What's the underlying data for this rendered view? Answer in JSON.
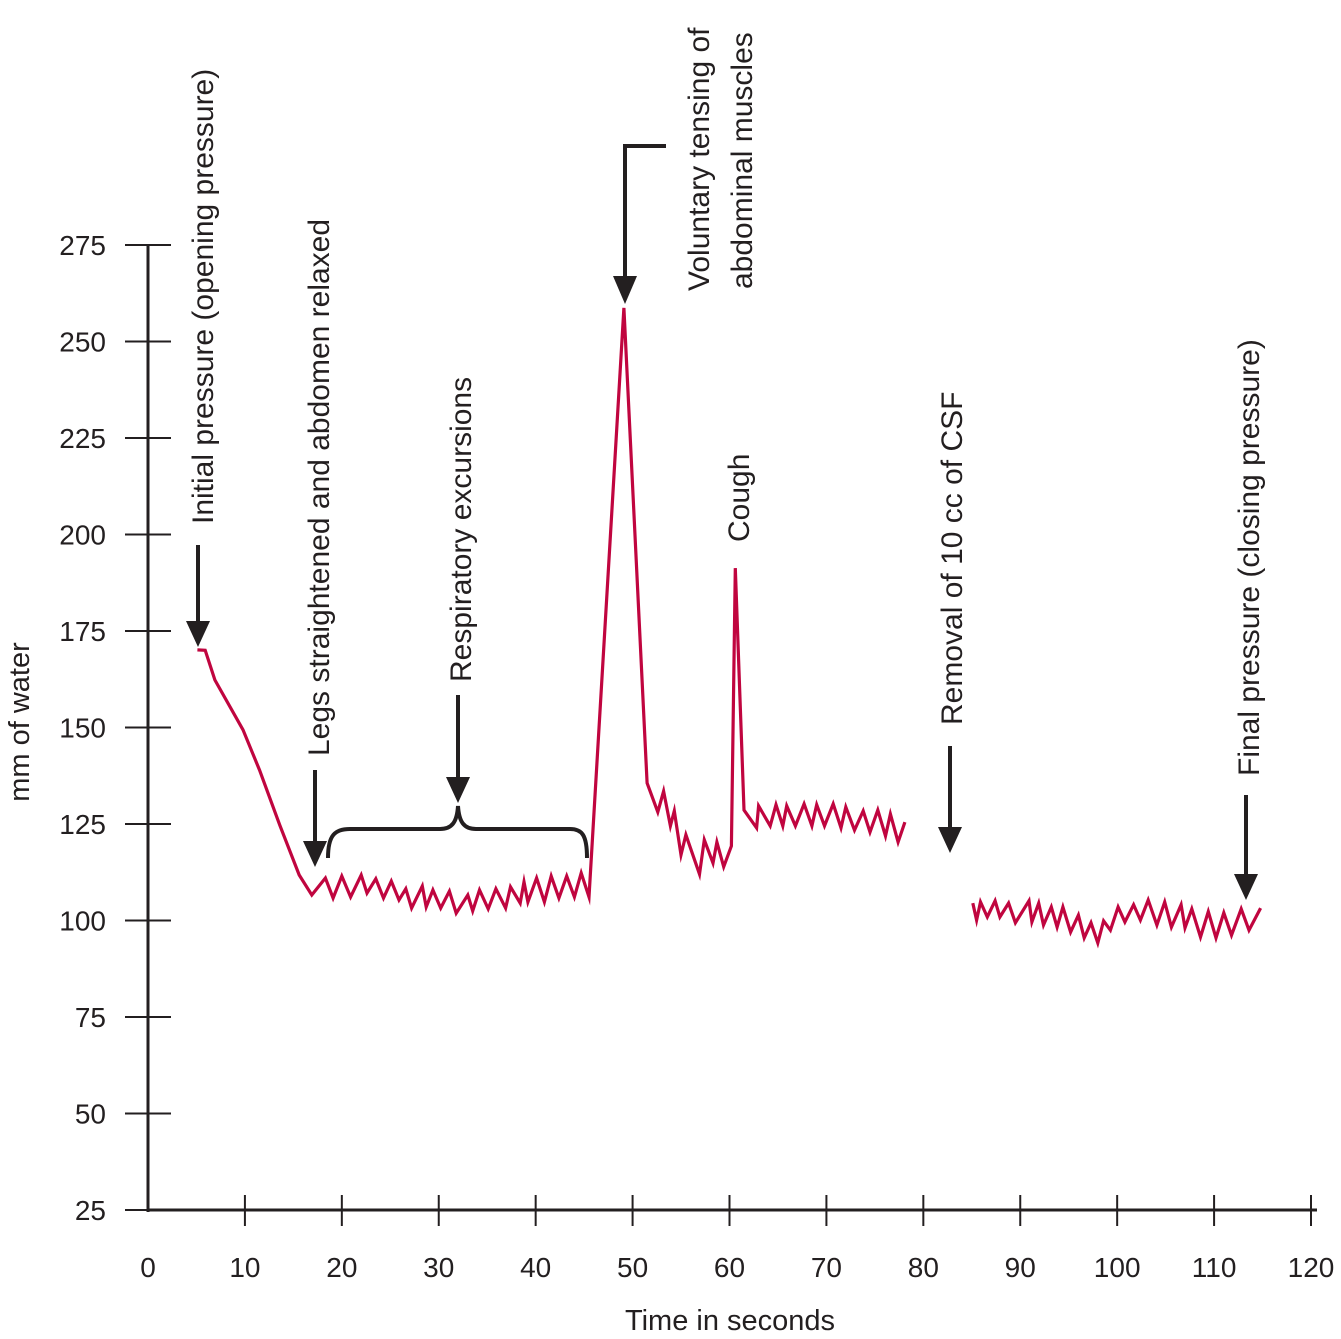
{
  "chart_data": {
    "type": "line",
    "title": "",
    "xlabel": "Time in seconds",
    "ylabel": "mm of water",
    "xlim": [
      0,
      120
    ],
    "ylim": [
      25,
      275
    ],
    "x_ticks": [
      0,
      10,
      20,
      30,
      40,
      50,
      60,
      70,
      80,
      90,
      100,
      110,
      120
    ],
    "y_ticks": [
      25,
      50,
      75,
      100,
      125,
      150,
      175,
      200,
      225,
      250,
      275
    ],
    "grid": false,
    "line_color": "#c0053f",
    "annotation_color": "#231f20",
    "segments": [
      [
        [
          5.1,
          170.1
        ],
        [
          5.9,
          170
        ],
        [
          6.9,
          162.3
        ],
        [
          9.8,
          149.4
        ],
        [
          11.5,
          139
        ],
        [
          13.6,
          124.7
        ],
        [
          15.6,
          111.8
        ],
        [
          16.9,
          106.6
        ],
        [
          18.3,
          111
        ],
        [
          19.1,
          105.8
        ],
        [
          20.0,
          111.5
        ],
        [
          20.9,
          106.1
        ],
        [
          22.0,
          111.8
        ],
        [
          22.6,
          107.1
        ],
        [
          23.5,
          110.8
        ],
        [
          24.3,
          105.8
        ],
        [
          25.1,
          110.2
        ],
        [
          25.9,
          105.3
        ],
        [
          26.6,
          108.2
        ],
        [
          27.2,
          103.2
        ],
        [
          28.3,
          108.9
        ],
        [
          28.7,
          103.5
        ],
        [
          29.4,
          107.9
        ],
        [
          30.2,
          103.2
        ],
        [
          31.1,
          107.6
        ],
        [
          31.8,
          101.9
        ],
        [
          33.0,
          106.6
        ],
        [
          33.5,
          102.5
        ],
        [
          34.2,
          107.9
        ],
        [
          35.1,
          103
        ],
        [
          35.9,
          108.2
        ],
        [
          36.9,
          103.2
        ],
        [
          37.4,
          108.7
        ],
        [
          38.4,
          104.5
        ],
        [
          38.8,
          110
        ],
        [
          39.2,
          104.8
        ],
        [
          40.1,
          111
        ],
        [
          40.9,
          104.8
        ],
        [
          41.6,
          111.5
        ],
        [
          42.4,
          105.8
        ],
        [
          43.2,
          111.5
        ],
        [
          44.0,
          106.1
        ],
        [
          44.7,
          112.3
        ],
        [
          45.5,
          106.1
        ],
        [
          49.1,
          258.7
        ],
        [
          51.5,
          135.6
        ],
        [
          52.6,
          128.1
        ],
        [
          53.2,
          133.5
        ],
        [
          53.9,
          124.5
        ],
        [
          54.3,
          128.4
        ],
        [
          55.0,
          117
        ],
        [
          55.5,
          122.2
        ],
        [
          56.9,
          112
        ],
        [
          57.4,
          120.9
        ],
        [
          58.3,
          114.9
        ],
        [
          58.7,
          120.3
        ],
        [
          59.4,
          113.9
        ],
        [
          60.2,
          119.3
        ],
        [
          60.6,
          191.3
        ],
        [
          61.5,
          128.6
        ],
        [
          62.8,
          124
        ],
        [
          63.0,
          129.7
        ],
        [
          64.2,
          124.5
        ],
        [
          64.8,
          130
        ],
        [
          65.5,
          124.5
        ],
        [
          65.9,
          129.7
        ],
        [
          66.8,
          124.5
        ],
        [
          67.7,
          130.2
        ],
        [
          68.5,
          124.5
        ],
        [
          69.0,
          130
        ],
        [
          69.8,
          124.5
        ],
        [
          70.7,
          130.2
        ],
        [
          71.5,
          124
        ],
        [
          72.0,
          129.4
        ],
        [
          72.9,
          123.4
        ],
        [
          73.8,
          128.4
        ],
        [
          74.5,
          122.9
        ],
        [
          75.3,
          128.6
        ],
        [
          76.1,
          121.9
        ],
        [
          76.6,
          127.6
        ],
        [
          77.4,
          120.3
        ],
        [
          78.1,
          125.5
        ]
      ],
      [
        [
          85.1,
          104.5
        ],
        [
          85.5,
          100.1
        ],
        [
          85.9,
          104.8
        ],
        [
          86.6,
          100.9
        ],
        [
          87.4,
          105.1
        ],
        [
          87.9,
          100.9
        ],
        [
          88.8,
          104.5
        ],
        [
          89.5,
          99.4
        ],
        [
          90.9,
          105.1
        ],
        [
          91.2,
          99.6
        ],
        [
          91.9,
          104.5
        ],
        [
          92.4,
          98.8
        ],
        [
          93.2,
          103.5
        ],
        [
          93.8,
          98.3
        ],
        [
          94.4,
          103.5
        ],
        [
          95.2,
          97
        ],
        [
          96.0,
          101.4
        ],
        [
          96.6,
          95.5
        ],
        [
          97.3,
          99.4
        ],
        [
          98.0,
          94.2
        ],
        [
          98.6,
          99.9
        ],
        [
          99.3,
          97.5
        ],
        [
          100.1,
          103.5
        ],
        [
          100.8,
          99.6
        ],
        [
          101.7,
          104.1
        ],
        [
          102.4,
          100.1
        ],
        [
          103.2,
          105.3
        ],
        [
          104.1,
          98.8
        ],
        [
          104.9,
          104.8
        ],
        [
          105.6,
          98.3
        ],
        [
          106.6,
          104.1
        ],
        [
          107.0,
          98.1
        ],
        [
          107.7,
          103
        ],
        [
          108.6,
          95.7
        ],
        [
          109.4,
          102.3
        ],
        [
          110.2,
          95.5
        ],
        [
          111.0,
          102
        ],
        [
          111.8,
          96.2
        ],
        [
          112.8,
          103
        ],
        [
          113.6,
          97.5
        ],
        [
          114.8,
          103.2
        ]
      ]
    ],
    "annotations": [
      {
        "text": "Initial pressure (opening pressure)",
        "x": 5,
        "y": 171
      },
      {
        "text": "Legs straightened and abdomen relaxed",
        "x": 17,
        "y": 107
      },
      {
        "text": "Respiratory excursions",
        "x": 32,
        "y": 113,
        "brace_from": 18.5,
        "brace_to": 45
      },
      {
        "text": "Voluntary tensing of",
        "x": 49,
        "y": 259
      },
      {
        "text": "abdominal muscles"
      },
      {
        "text": "Cough",
        "x": 60.6,
        "y": 191
      },
      {
        "text": "Removal of 10 cc of CSF",
        "x": 82,
        "y": 117
      },
      {
        "text": "Final pressure (closing pressure)",
        "x": 113,
        "y": 104
      }
    ]
  }
}
